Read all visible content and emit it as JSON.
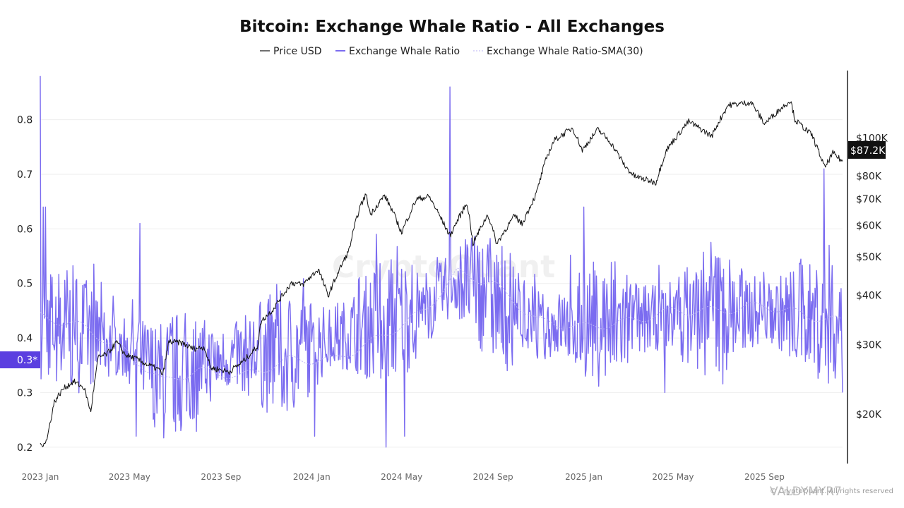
{
  "chart_data": {
    "type": "line",
    "title": "Bitcoin: Exchange Whale Ratio - All Exchanges",
    "legend_position": "top-center",
    "grid": true,
    "colors": {
      "price": "#111111",
      "whale_ratio": "#7b6cf0",
      "sma": "#b8b0f5",
      "badge_left": "#5b3fe0",
      "badge_right": "#111111"
    },
    "x_range": [
      "2023-01-01",
      "2025-12-15"
    ],
    "x_ticks": [
      {
        "date": "2023-01-01",
        "label": "2023 Jan"
      },
      {
        "date": "2023-05-01",
        "label": "2023 May"
      },
      {
        "date": "2023-09-01",
        "label": "2023 Sep"
      },
      {
        "date": "2024-01-01",
        "label": "2024 Jan"
      },
      {
        "date": "2024-05-01",
        "label": "2024 May"
      },
      {
        "date": "2024-09-01",
        "label": "2024 Sep"
      },
      {
        "date": "2025-01-01",
        "label": "2025 Jan"
      },
      {
        "date": "2025-05-01",
        "label": "2025 May"
      },
      {
        "date": "2025-09-01",
        "label": "2025 Sep"
      }
    ],
    "y_left": {
      "range": [
        0.17,
        0.89
      ],
      "ticks": [
        {
          "value": 0.2,
          "label": "0.2"
        },
        {
          "value": 0.3,
          "label": "0.3"
        },
        {
          "value": 0.4,
          "label": "0.4"
        },
        {
          "value": 0.5,
          "label": "0.5"
        },
        {
          "value": 0.6,
          "label": "0.6"
        },
        {
          "value": 0.7,
          "label": "0.7"
        },
        {
          "value": 0.8,
          "label": "0.8"
        }
      ]
    },
    "y_right": {
      "scale": "log",
      "range": [
        15000,
        148000
      ],
      "ticks": [
        {
          "value": 20000,
          "label": "$20K"
        },
        {
          "value": 30000,
          "label": "$30K"
        },
        {
          "value": 40000,
          "label": "$40K"
        },
        {
          "value": 50000,
          "label": "$50K"
        },
        {
          "value": 60000,
          "label": "$60K"
        },
        {
          "value": 70000,
          "label": "$70K"
        },
        {
          "value": 80000,
          "label": "$80K"
        },
        {
          "value": 100000,
          "label": "$100K"
        }
      ]
    },
    "series": [
      {
        "name": "Price USD",
        "axis": "right",
        "points": [
          [
            "2023-01-01",
            16600
          ],
          [
            "2023-01-10",
            17200
          ],
          [
            "2023-01-20",
            21500
          ],
          [
            "2023-02-01",
            23200
          ],
          [
            "2023-02-15",
            24200
          ],
          [
            "2023-03-01",
            23300
          ],
          [
            "2023-03-10",
            20200
          ],
          [
            "2023-03-20",
            27800
          ],
          [
            "2023-04-01",
            28400
          ],
          [
            "2023-04-14",
            30400
          ],
          [
            "2023-04-25",
            28300
          ],
          [
            "2023-05-10",
            27600
          ],
          [
            "2023-05-25",
            26700
          ],
          [
            "2023-06-10",
            25900
          ],
          [
            "2023-06-15",
            25100
          ],
          [
            "2023-06-23",
            30500
          ],
          [
            "2023-07-10",
            30300
          ],
          [
            "2023-07-25",
            29300
          ],
          [
            "2023-08-10",
            29500
          ],
          [
            "2023-08-18",
            26200
          ],
          [
            "2023-09-01",
            25900
          ],
          [
            "2023-09-12",
            25600
          ],
          [
            "2023-10-01",
            27200
          ],
          [
            "2023-10-20",
            29600
          ],
          [
            "2023-10-25",
            34300
          ],
          [
            "2023-11-10",
            36800
          ],
          [
            "2023-12-05",
            43000
          ],
          [
            "2023-12-20",
            42500
          ],
          [
            "2024-01-10",
            46500
          ],
          [
            "2024-01-23",
            39800
          ],
          [
            "2024-02-10",
            47500
          ],
          [
            "2024-02-20",
            51800
          ],
          [
            "2024-03-05",
            66000
          ],
          [
            "2024-03-14",
            72000
          ],
          [
            "2024-03-20",
            64000
          ],
          [
            "2024-04-08",
            71500
          ],
          [
            "2024-04-20",
            64500
          ],
          [
            "2024-05-01",
            57500
          ],
          [
            "2024-05-21",
            70000
          ],
          [
            "2024-06-07",
            71000
          ],
          [
            "2024-06-25",
            61500
          ],
          [
            "2024-07-05",
            56500
          ],
          [
            "2024-07-28",
            68500
          ],
          [
            "2024-08-05",
            54000
          ],
          [
            "2024-08-25",
            64000
          ],
          [
            "2024-09-06",
            54000
          ],
          [
            "2024-09-30",
            63500
          ],
          [
            "2024-10-10",
            60500
          ],
          [
            "2024-10-29",
            72000
          ],
          [
            "2024-11-12",
            89000
          ],
          [
            "2024-11-22",
            98500
          ],
          [
            "2024-12-17",
            106000
          ],
          [
            "2024-12-30",
            93000
          ],
          [
            "2025-01-20",
            105000
          ],
          [
            "2025-02-05",
            98000
          ],
          [
            "2025-02-26",
            84500
          ],
          [
            "2025-03-10",
            80000
          ],
          [
            "2025-04-08",
            77000
          ],
          [
            "2025-04-22",
            93000
          ],
          [
            "2025-05-22",
            110000
          ],
          [
            "2025-06-22",
            101000
          ],
          [
            "2025-07-14",
            121000
          ],
          [
            "2025-08-14",
            123000
          ],
          [
            "2025-09-01",
            108500
          ],
          [
            "2025-10-06",
            124500
          ],
          [
            "2025-10-12",
            111000
          ],
          [
            "2025-11-04",
            101500
          ],
          [
            "2025-11-21",
            84000
          ],
          [
            "2025-12-02",
            91500
          ],
          [
            "2025-12-15",
            87200
          ]
        ]
      },
      {
        "name": "Exchange Whale Ratio",
        "axis": "left",
        "baseline": [
          [
            "2023-01-01",
            0.43
          ],
          [
            "2023-03-01",
            0.41
          ],
          [
            "2023-05-01",
            0.38
          ],
          [
            "2023-06-15",
            0.32
          ],
          [
            "2023-08-01",
            0.35
          ],
          [
            "2023-10-01",
            0.37
          ],
          [
            "2023-12-01",
            0.37
          ],
          [
            "2024-02-01",
            0.4
          ],
          [
            "2024-04-01",
            0.43
          ],
          [
            "2024-06-01",
            0.45
          ],
          [
            "2024-07-15",
            0.51
          ],
          [
            "2024-09-01",
            0.47
          ],
          [
            "2024-11-01",
            0.42
          ],
          [
            "2025-01-01",
            0.43
          ],
          [
            "2025-03-01",
            0.43
          ],
          [
            "2025-05-01",
            0.44
          ],
          [
            "2025-07-01",
            0.45
          ],
          [
            "2025-09-01",
            0.45
          ],
          [
            "2025-11-01",
            0.44
          ],
          [
            "2025-12-15",
            0.42
          ]
        ],
        "spikes": [
          [
            "2023-01-01",
            0.88
          ],
          [
            "2023-01-05",
            0.64
          ],
          [
            "2023-01-08",
            0.64
          ],
          [
            "2023-05-15",
            0.61
          ],
          [
            "2024-03-28",
            0.59
          ],
          [
            "2024-05-05",
            0.22
          ],
          [
            "2024-07-05",
            0.86
          ],
          [
            "2024-07-10",
            0.51
          ],
          [
            "2025-01-01",
            0.64
          ],
          [
            "2025-04-20",
            0.3
          ],
          [
            "2025-11-20",
            0.71
          ],
          [
            "2025-11-27",
            0.57
          ],
          [
            "2024-04-10",
            0.2
          ],
          [
            "2024-01-05",
            0.22
          ],
          [
            "2023-05-10",
            0.22
          ]
        ],
        "last_value": 0.3,
        "last_label": "0.3*"
      },
      {
        "name": "Exchange Whale Ratio-SMA(30)",
        "axis": "left",
        "points": [
          [
            "2023-01-01",
            0.44
          ],
          [
            "2023-03-01",
            0.42
          ],
          [
            "2023-05-01",
            0.37
          ],
          [
            "2023-06-15",
            0.32
          ],
          [
            "2023-08-01",
            0.34
          ],
          [
            "2023-10-01",
            0.33
          ],
          [
            "2023-12-01",
            0.36
          ],
          [
            "2024-02-01",
            0.36
          ],
          [
            "2024-04-01",
            0.4
          ],
          [
            "2024-06-01",
            0.45
          ],
          [
            "2024-07-15",
            0.52
          ],
          [
            "2024-09-01",
            0.5
          ],
          [
            "2024-11-01",
            0.43
          ],
          [
            "2025-01-01",
            0.42
          ],
          [
            "2025-03-01",
            0.43
          ],
          [
            "2025-05-01",
            0.45
          ],
          [
            "2025-07-01",
            0.45
          ],
          [
            "2025-09-01",
            0.46
          ],
          [
            "2025-11-01",
            0.44
          ],
          [
            "2025-12-15",
            0.43
          ]
        ]
      }
    ],
    "price_last_label": "$87.2K"
  },
  "watermark": "CryptoQuant",
  "copyright": "© CryptoQuant. All rights reserved",
  "user_mark": "VALDYMYR7"
}
